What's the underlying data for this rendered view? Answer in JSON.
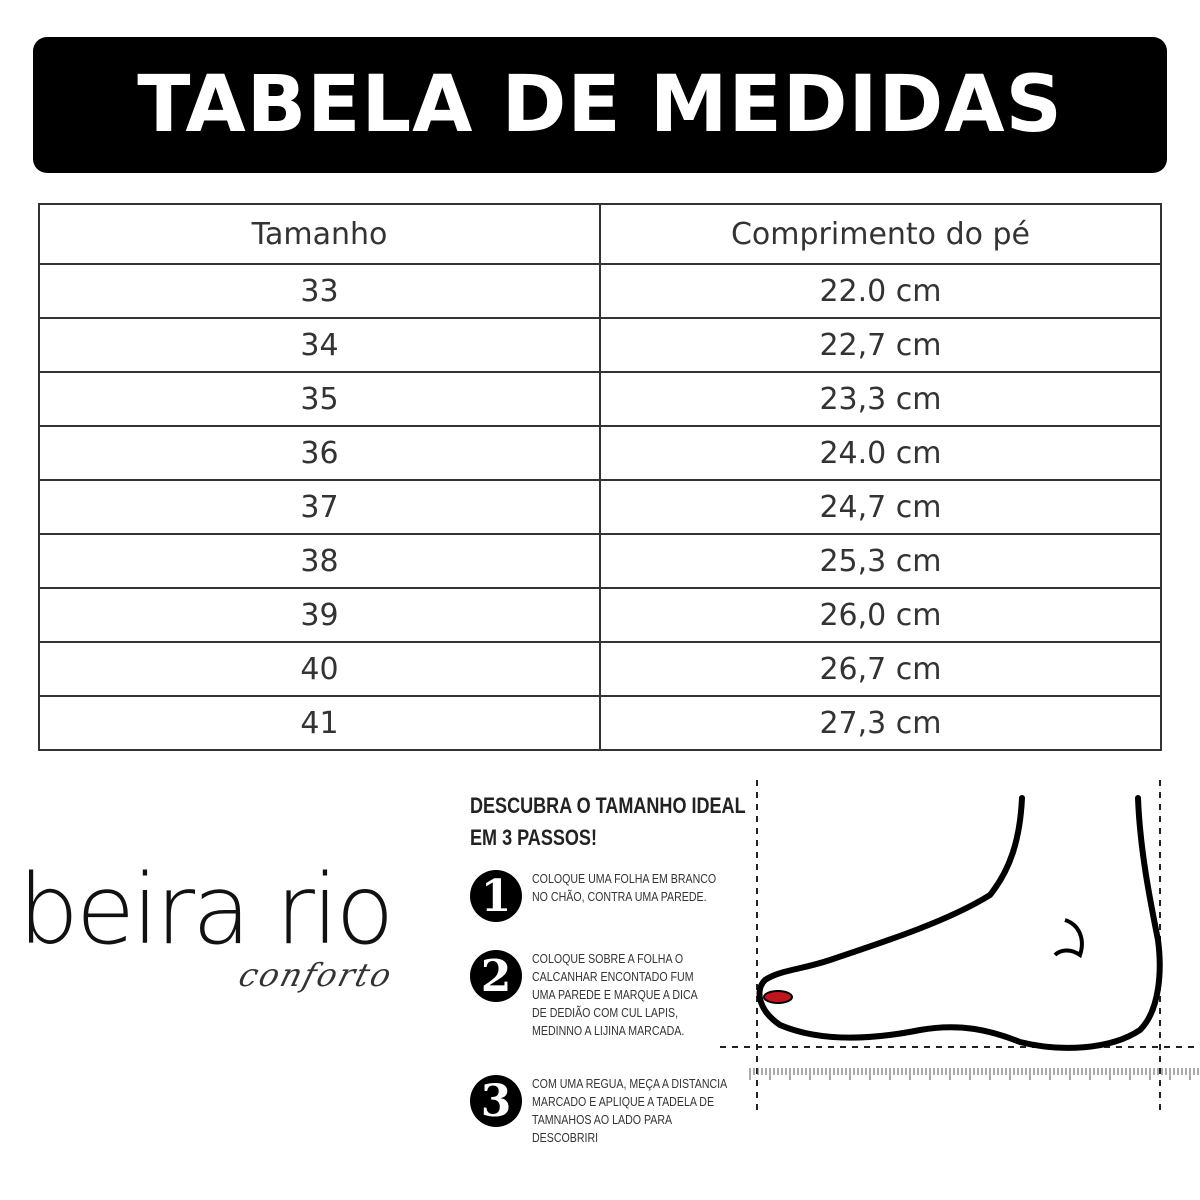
{
  "title": "TABELA DE MEDIDAS",
  "table": {
    "headers": [
      "Tamanho",
      "Comprimento do pé"
    ],
    "rows": [
      [
        "33",
        "22.0 cm"
      ],
      [
        "34",
        "22,7 cm"
      ],
      [
        "35",
        "23,3 cm"
      ],
      [
        "36",
        "24.0 cm"
      ],
      [
        "37",
        "24,7 cm"
      ],
      [
        "38",
        "25,3 cm"
      ],
      [
        "39",
        "26,0 cm"
      ],
      [
        "40",
        "26,7 cm"
      ],
      [
        "41",
        "27,3 cm"
      ]
    ]
  },
  "logo": {
    "main": "beira rio",
    "sub": "conforto"
  },
  "guide": {
    "heading_line1": "DESCUBRA O TAMANHO IDEAL",
    "heading_line2": "EM 3 PASSOS!",
    "steps": [
      {
        "number": "1",
        "text": "COLOQUE UMA FOLHA EM BRANCO NO CHÃO, CONTRA UMA PAREDE."
      },
      {
        "number": "2",
        "text": "COLOQUE SOBRE A FOLHA O CALCANHAR ENCONTADO FUM UMA PAREDE E MARQUE A DICA DE DEDIÃO COM CUL LAPIS, MEDINNO A LIJINA MARCADA."
      },
      {
        "number": "3",
        "text": "COM UMA REGUA, MEÇA A DISTANCIA MARCADO E APLIQUE A TADELA DE TAMNAHOS AO LADO PARA DESCOBRIRI"
      }
    ]
  },
  "colors": {
    "banner": "#000000",
    "toenail": "#c0141e"
  }
}
